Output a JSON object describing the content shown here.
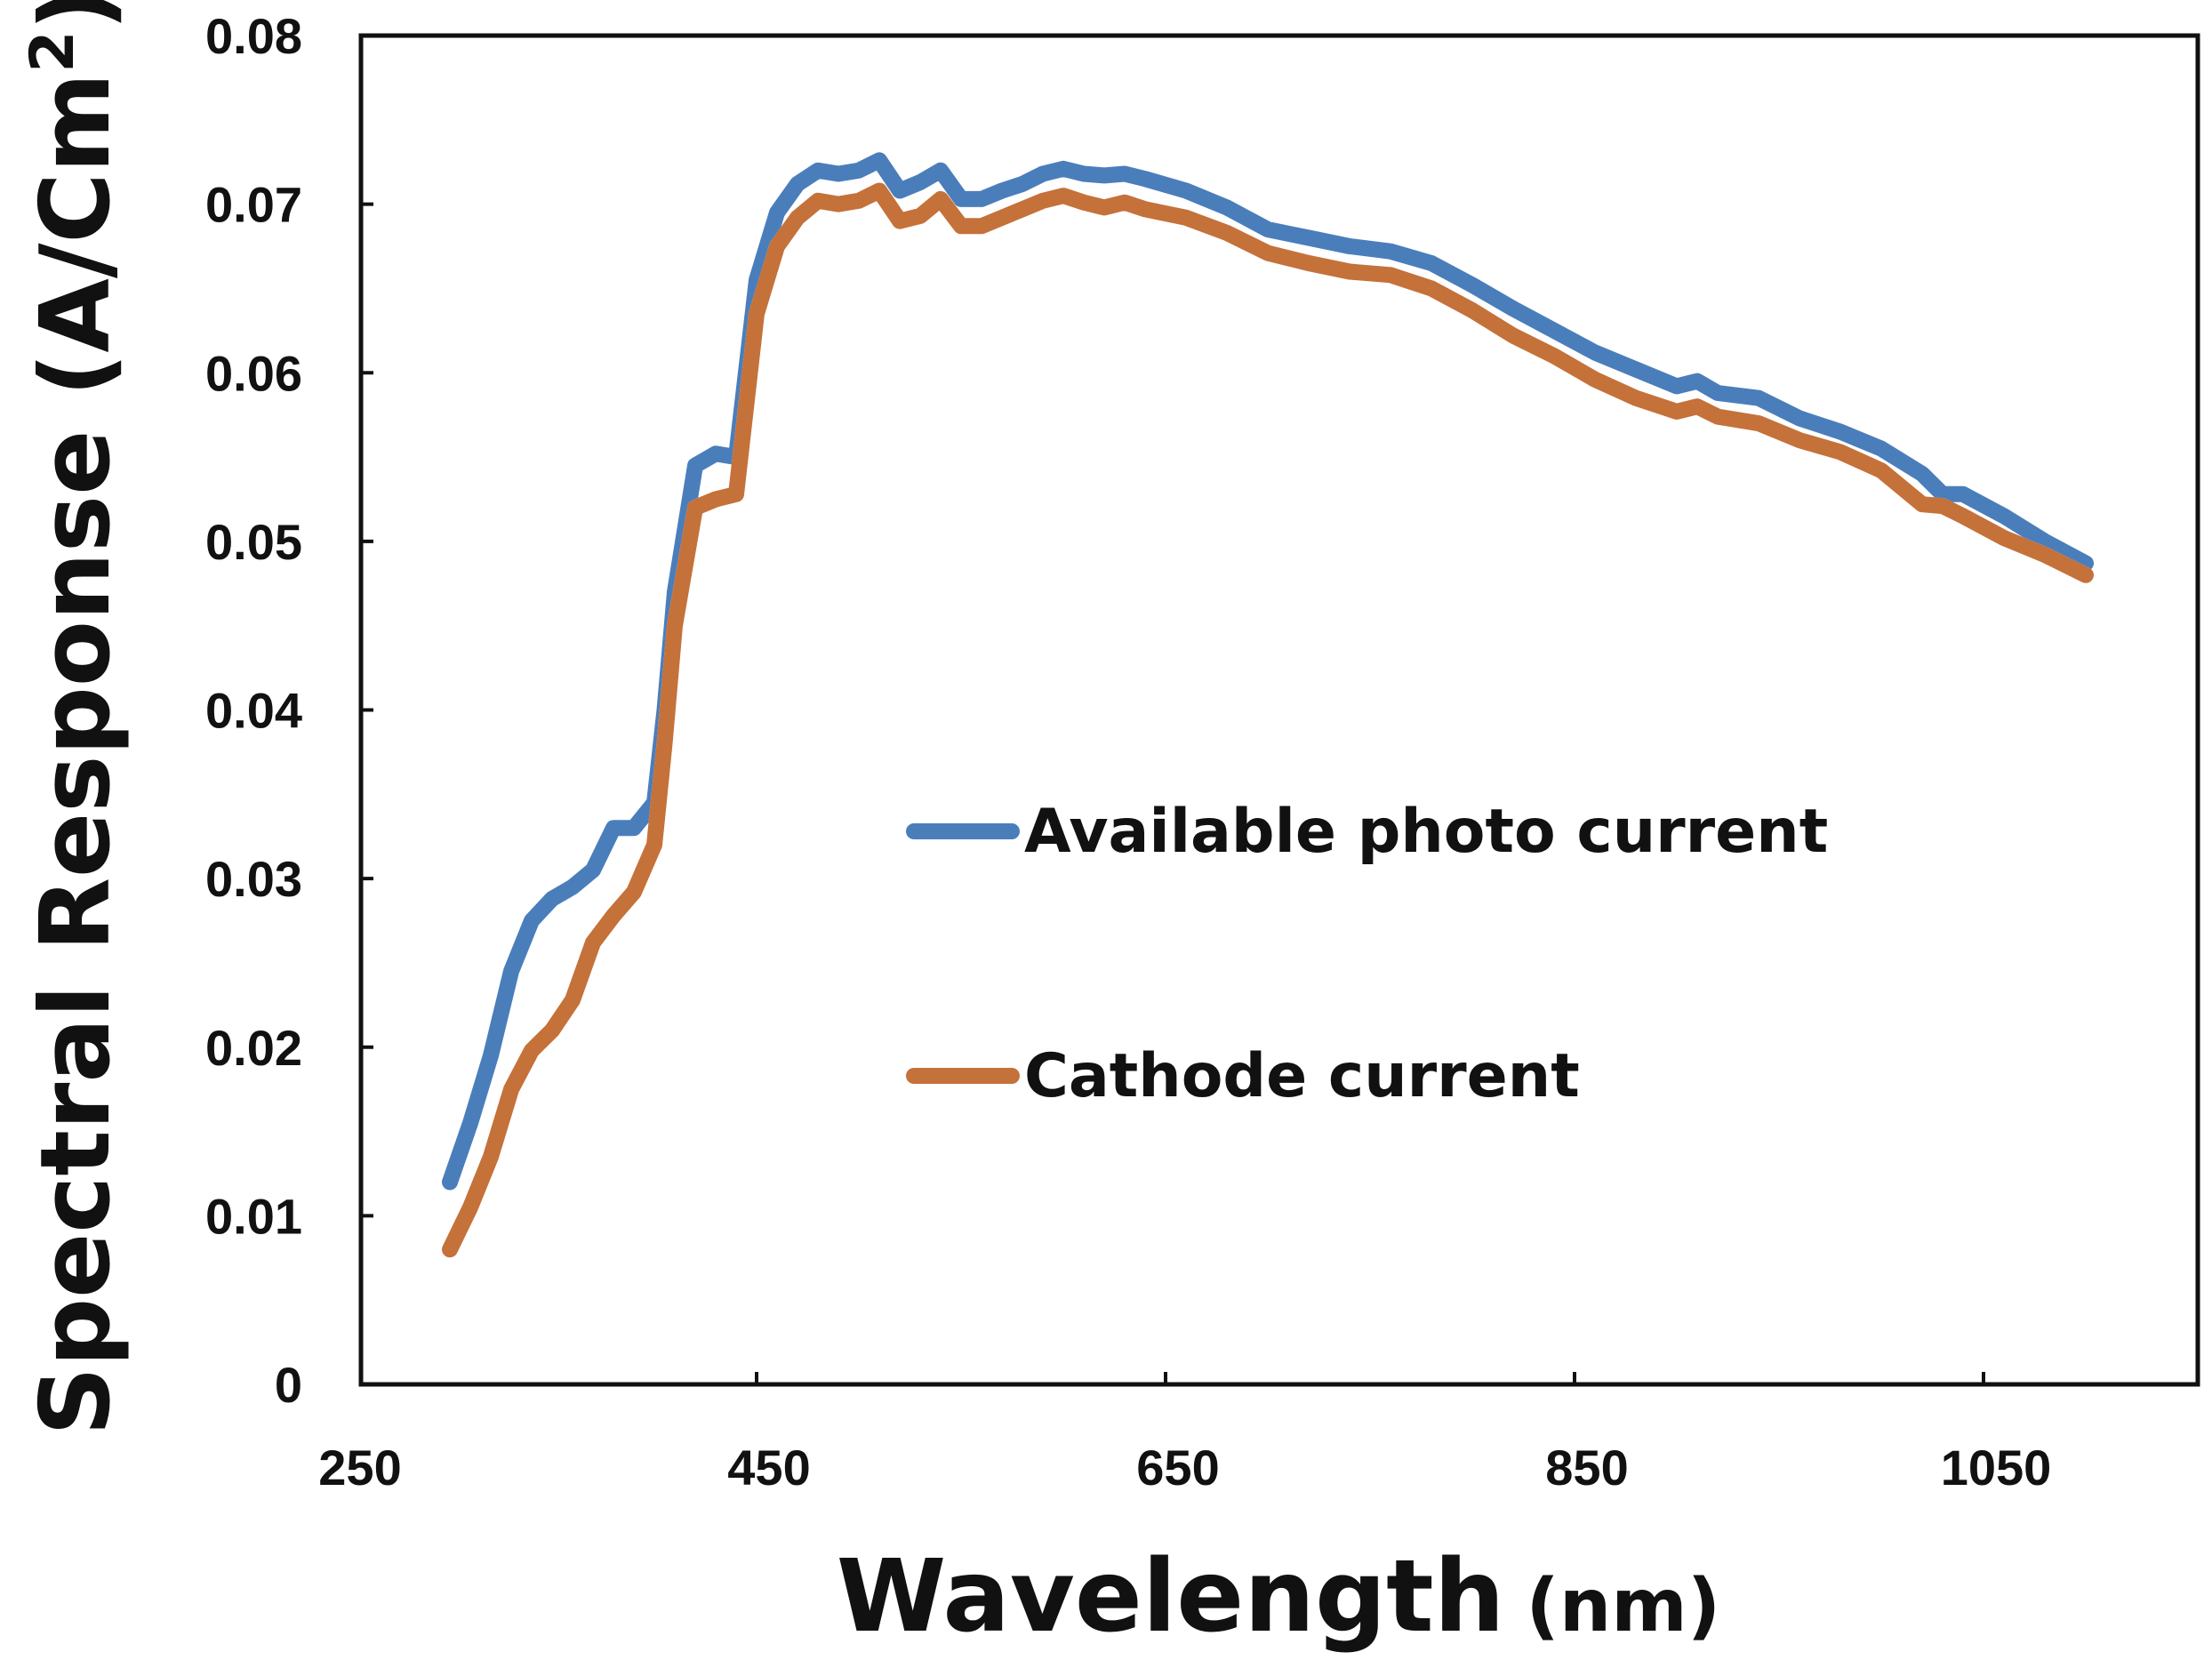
{
  "chart_data": {
    "type": "line",
    "title": "",
    "xlabel": "Wavelength",
    "xlabel_unit": "(nm)",
    "ylabel": "Spectral Response (A/Cm",
    "ylabel_sup": "2",
    "ylabel_close": ")",
    "xlim": [
      250,
      1150
    ],
    "ylim": [
      0,
      0.08
    ],
    "xticks": [
      250,
      450,
      650,
      850,
      1050
    ],
    "xtick_labels": [
      "250",
      "450",
      "650",
      "850",
      "1050"
    ],
    "yticks": [
      0,
      0.01,
      0.02,
      0.03,
      0.04,
      0.05,
      0.06,
      0.07,
      0.08
    ],
    "ytick_labels": [
      "0",
      "0.01",
      "0.02",
      "0.03",
      "0.04",
      "0.05",
      "0.06",
      "0.07",
      "0.08"
    ],
    "grid": false,
    "legend_position": "center-right",
    "series": [
      {
        "name": "Available photo current",
        "color": "#4A7EBB",
        "x": [
          300,
          310,
          320,
          330,
          340,
          350,
          360,
          370,
          380,
          390,
          400,
          405,
          410,
          420,
          430,
          440,
          450,
          460,
          470,
          480,
          490,
          500,
          510,
          520,
          530,
          540,
          550,
          560,
          570,
          580,
          590,
          600,
          610,
          620,
          630,
          640,
          660,
          680,
          700,
          720,
          740,
          760,
          780,
          800,
          820,
          840,
          860,
          880,
          900,
          910,
          920,
          940,
          960,
          980,
          1000,
          1020,
          1030,
          1040,
          1060,
          1080,
          1100
        ],
        "values": [
          0.012,
          0.0155,
          0.0195,
          0.0245,
          0.0275,
          0.0288,
          0.0295,
          0.0305,
          0.033,
          0.033,
          0.0345,
          0.04,
          0.047,
          0.0545,
          0.0552,
          0.055,
          0.0655,
          0.0695,
          0.0712,
          0.072,
          0.0718,
          0.072,
          0.0726,
          0.0708,
          0.0713,
          0.072,
          0.0703,
          0.0703,
          0.0708,
          0.0712,
          0.0718,
          0.0721,
          0.0718,
          0.0717,
          0.0718,
          0.0715,
          0.0708,
          0.0698,
          0.0685,
          0.068,
          0.0675,
          0.0672,
          0.0665,
          0.0652,
          0.0638,
          0.0625,
          0.0612,
          0.0602,
          0.0592,
          0.0595,
          0.0588,
          0.0585,
          0.0573,
          0.0565,
          0.0555,
          0.054,
          0.0528,
          0.0528,
          0.0515,
          0.05,
          0.0487
        ]
      },
      {
        "name": "Cathode current",
        "color": "#C5713A",
        "x": [
          300,
          310,
          320,
          330,
          340,
          350,
          360,
          370,
          380,
          390,
          400,
          405,
          410,
          420,
          430,
          440,
          450,
          460,
          470,
          480,
          490,
          500,
          510,
          520,
          530,
          540,
          550,
          560,
          570,
          580,
          590,
          600,
          610,
          620,
          630,
          640,
          660,
          680,
          700,
          720,
          740,
          760,
          780,
          800,
          820,
          840,
          860,
          880,
          900,
          910,
          920,
          940,
          960,
          980,
          1000,
          1020,
          1030,
          1040,
          1060,
          1080,
          1100
        ],
        "values": [
          0.008,
          0.0105,
          0.0135,
          0.0175,
          0.0198,
          0.021,
          0.0228,
          0.0262,
          0.0278,
          0.0292,
          0.032,
          0.038,
          0.045,
          0.052,
          0.0525,
          0.0528,
          0.0635,
          0.0675,
          0.0692,
          0.0702,
          0.07,
          0.0702,
          0.0708,
          0.069,
          0.0693,
          0.0703,
          0.0687,
          0.0687,
          0.0692,
          0.0697,
          0.0702,
          0.0705,
          0.0701,
          0.0698,
          0.0701,
          0.0697,
          0.0692,
          0.0683,
          0.0671,
          0.0665,
          0.066,
          0.0658,
          0.065,
          0.0637,
          0.0622,
          0.061,
          0.0596,
          0.0585,
          0.0577,
          0.058,
          0.0574,
          0.057,
          0.056,
          0.0553,
          0.0542,
          0.0522,
          0.0521,
          0.0515,
          0.0502,
          0.0492,
          0.048
        ]
      }
    ]
  }
}
